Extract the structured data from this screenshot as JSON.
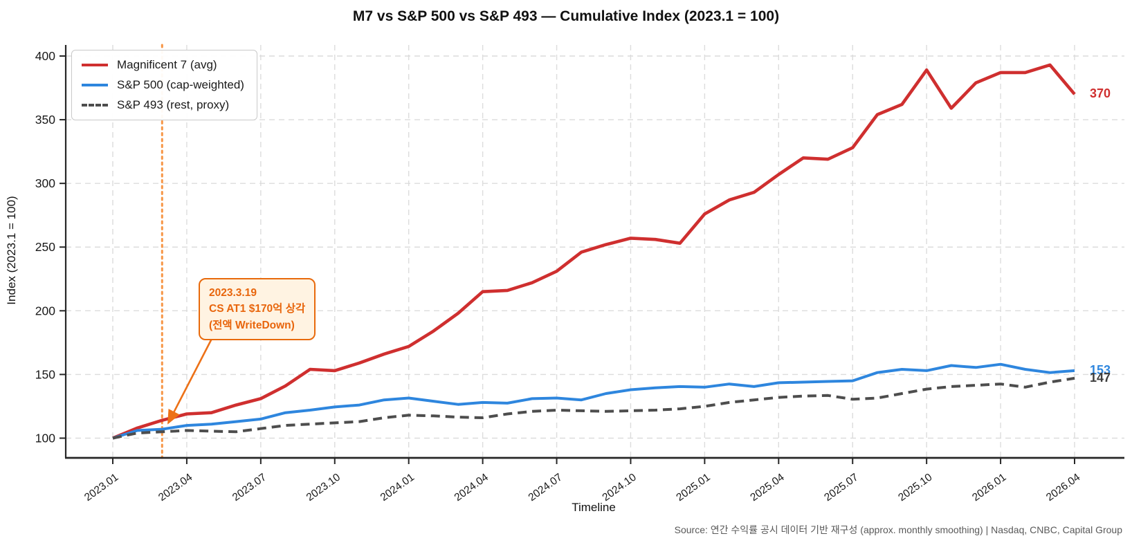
{
  "page": {
    "title": "M7 vs S&P 500 vs S&P 493 — Cumulative Index (2023.1 = 100)"
  },
  "chart_data": {
    "type": "line",
    "title": "M7 vs S&P 500 vs S&P 493 — Cumulative Index (2023.1 = 100)",
    "xlabel": "Timeline",
    "ylabel": "Index (2023.1 = 100)",
    "grid": true,
    "legend_position": "upper-left",
    "yticks": [
      100,
      150,
      200,
      250,
      300,
      350,
      400
    ],
    "ylim": [
      84,
      409
    ],
    "x_tick_every": 3,
    "x": [
      "2023.01",
      "2023.02",
      "2023.03",
      "2023.04",
      "2023.05",
      "2023.06",
      "2023.07",
      "2023.08",
      "2023.09",
      "2023.10",
      "2023.11",
      "2023.12",
      "2024.01",
      "2024.02",
      "2024.03",
      "2024.04",
      "2024.05",
      "2024.06",
      "2024.07",
      "2024.08",
      "2024.09",
      "2024.10",
      "2024.11",
      "2024.12",
      "2025.01",
      "2025.02",
      "2025.03",
      "2025.04",
      "2025.05",
      "2025.06",
      "2025.07",
      "2025.08",
      "2025.09",
      "2025.10",
      "2025.11",
      "2025.12",
      "2026.01",
      "2026.02",
      "2026.03",
      "2026.04"
    ],
    "series": [
      {
        "name": "Magnificent 7 (avg)",
        "slug": "magnificent-7-avg",
        "color": "#cf2f2f",
        "style": "solid",
        "end_label": "370",
        "values": [
          100,
          108,
          114,
          119,
          120,
          126,
          131,
          141,
          154,
          153,
          159,
          166,
          172,
          184,
          198,
          215,
          216,
          222,
          231,
          246,
          252,
          257,
          256,
          253,
          276,
          287,
          293,
          307,
          320,
          319,
          328,
          354,
          362,
          389,
          359,
          379,
          387,
          387,
          393,
          370
        ]
      },
      {
        "name": "S&P 500 (cap-weighted)",
        "slug": "sp-500-cap-weighted",
        "color": "#2e86de",
        "style": "solid",
        "end_label": "153",
        "values": [
          100,
          106,
          107,
          110,
          111,
          113,
          115,
          120,
          122,
          124.5,
          126,
          130,
          131.5,
          129,
          126.5,
          128,
          127.5,
          131,
          131.5,
          130,
          135,
          138,
          139.5,
          140.5,
          140,
          142.5,
          140.5,
          143.5,
          144,
          144.5,
          145,
          151.5,
          154,
          153,
          157,
          155.5,
          158,
          154,
          151.5,
          153
        ]
      },
      {
        "name": "S&P 493 (rest, proxy)",
        "slug": "sp-493-rest-proxy",
        "color": "#4d4d4d",
        "style": "dashed",
        "end_label": "147",
        "values": [
          100,
          104,
          105,
          106,
          105.5,
          105,
          107.5,
          110,
          111,
          112,
          113,
          116,
          118,
          117.5,
          116.5,
          116,
          119,
          121,
          122,
          121.5,
          121,
          121.5,
          122,
          123,
          125,
          128,
          130,
          132,
          133,
          133.5,
          130.5,
          131.5,
          135,
          138.5,
          140.5,
          141.5,
          142.5,
          140,
          144,
          147
        ]
      }
    ],
    "annotation": {
      "lines": [
        "2023.3.19",
        "CS AT1 $170억 상각",
        "(전액 WriteDown)"
      ],
      "text_color": "#e8650c",
      "box_border_color": "#e8690b",
      "box_fill_color": "#fff3e2",
      "arrow_color": "#ed7117",
      "vline_x": "2023.03",
      "vline_color": "#f79646",
      "arrow_target_value": 112
    },
    "source": "Source: 연간 수익률 공시 데이터 기반 재구성 (approx. monthly smoothing) | Nasdaq, CNBC, Capital Group"
  }
}
